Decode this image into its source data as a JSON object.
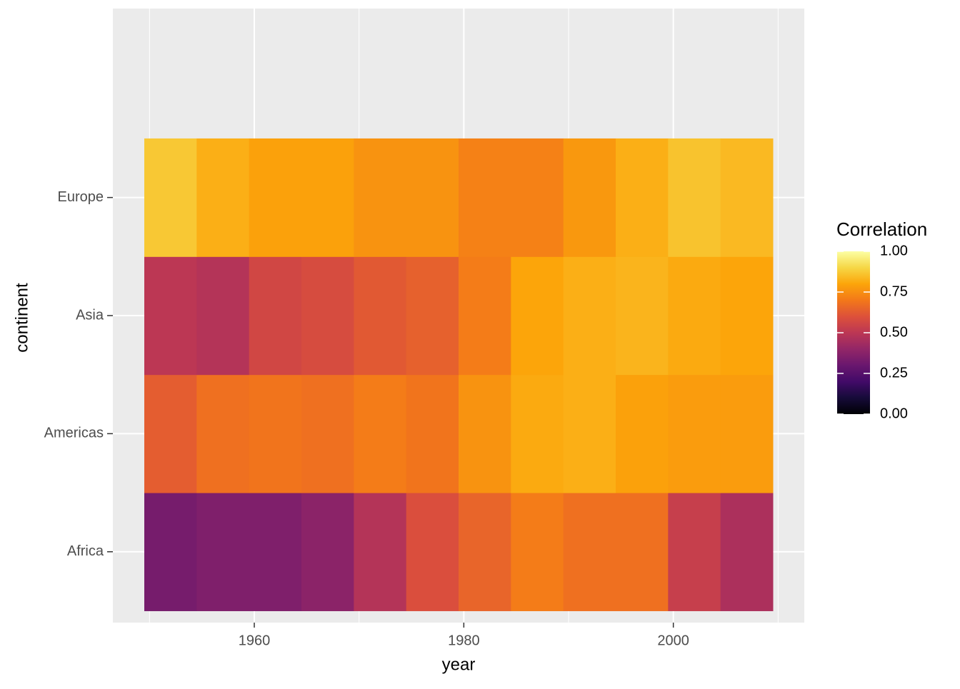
{
  "chart_data": {
    "type": "heatmap",
    "x_label": "year",
    "y_label": "continent",
    "legend_title": "Correlation",
    "x": [
      1952,
      1957,
      1962,
      1967,
      1972,
      1977,
      1982,
      1987,
      1992,
      1997,
      2002,
      2007
    ],
    "categories": [
      "Africa",
      "Americas",
      "Asia",
      "Europe"
    ],
    "values": [
      [
        0.33,
        0.35,
        0.35,
        0.38,
        0.48,
        0.59,
        0.65,
        0.71,
        0.68,
        0.68,
        0.53,
        0.46
      ],
      [
        0.63,
        0.68,
        0.69,
        0.68,
        0.71,
        0.69,
        0.76,
        0.81,
        0.82,
        0.79,
        0.78,
        0.78
      ],
      [
        0.5,
        0.48,
        0.56,
        0.58,
        0.62,
        0.64,
        0.71,
        0.8,
        0.82,
        0.83,
        0.81,
        0.8
      ],
      [
        0.87,
        0.82,
        0.79,
        0.79,
        0.76,
        0.76,
        0.72,
        0.72,
        0.77,
        0.82,
        0.86,
        0.84
      ]
    ],
    "xlim": [
      1946.5,
      2012.5
    ],
    "xticks": [
      1960,
      1980,
      2000
    ],
    "x_minor_ticks": [
      1950,
      1970,
      1990,
      2010
    ],
    "zlim": [
      0,
      1
    ],
    "zticks": [
      {
        "value": 0,
        "label": "0.00"
      },
      0.25,
      {
        "value": 0.5,
        "label": "0.50"
      },
      0.75,
      {
        "value": 1,
        "label": "1.00"
      }
    ],
    "colormap": "inferno",
    "grid": true
  }
}
